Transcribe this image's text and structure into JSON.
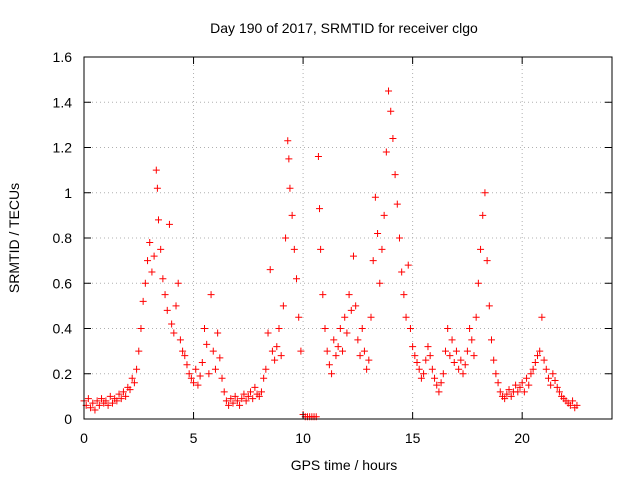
{
  "chart_data": {
    "type": "scatter",
    "title": "Day 190 of 2017, SRMTID for receiver clgo",
    "xlabel": "GPS time / hours",
    "ylabel": "SRMTID / TECUs",
    "xlim": [
      0,
      24.1
    ],
    "ylim": [
      0,
      1.6
    ],
    "xticks": [
      0,
      5,
      10,
      15,
      20
    ],
    "xtick_labels": [
      "0",
      "5",
      "10",
      "15",
      "20"
    ],
    "yticks": [
      0,
      0.2,
      0.4,
      0.6,
      0.8,
      1.0,
      1.2,
      1.4,
      1.6
    ],
    "ytick_labels": [
      "0",
      "0.2",
      "0.4",
      "0.6",
      "0.8",
      "1",
      "1.2",
      "1.4",
      "1.6"
    ],
    "grid": true,
    "marker": "+",
    "series": [
      {
        "name": "SRMTID",
        "color": "#ff0000",
        "points": [
          [
            0.0,
            0.08
          ],
          [
            0.1,
            0.06
          ],
          [
            0.2,
            0.09
          ],
          [
            0.3,
            0.05
          ],
          [
            0.4,
            0.07
          ],
          [
            0.5,
            0.04
          ],
          [
            0.6,
            0.08
          ],
          [
            0.7,
            0.06
          ],
          [
            0.8,
            0.09
          ],
          [
            0.9,
            0.07
          ],
          [
            1.0,
            0.08
          ],
          [
            1.1,
            0.06
          ],
          [
            1.2,
            0.1
          ],
          [
            1.3,
            0.07
          ],
          [
            1.4,
            0.09
          ],
          [
            1.5,
            0.08
          ],
          [
            1.6,
            0.11
          ],
          [
            1.7,
            0.09
          ],
          [
            1.8,
            0.12
          ],
          [
            1.9,
            0.1
          ],
          [
            2.0,
            0.14
          ],
          [
            2.1,
            0.13
          ],
          [
            2.2,
            0.18
          ],
          [
            2.3,
            0.16
          ],
          [
            2.4,
            0.22
          ],
          [
            2.5,
            0.3
          ],
          [
            2.6,
            0.4
          ],
          [
            2.7,
            0.52
          ],
          [
            2.8,
            0.6
          ],
          [
            2.9,
            0.7
          ],
          [
            3.0,
            0.78
          ],
          [
            3.1,
            0.65
          ],
          [
            3.2,
            0.72
          ],
          [
            3.3,
            1.1
          ],
          [
            3.35,
            1.02
          ],
          [
            3.4,
            0.88
          ],
          [
            3.5,
            0.75
          ],
          [
            3.6,
            0.62
          ],
          [
            3.7,
            0.55
          ],
          [
            3.8,
            0.48
          ],
          [
            3.9,
            0.86
          ],
          [
            4.0,
            0.42
          ],
          [
            4.1,
            0.38
          ],
          [
            4.2,
            0.5
          ],
          [
            4.3,
            0.6
          ],
          [
            4.4,
            0.35
          ],
          [
            4.5,
            0.3
          ],
          [
            4.6,
            0.28
          ],
          [
            4.7,
            0.24
          ],
          [
            4.8,
            0.2
          ],
          [
            4.9,
            0.18
          ],
          [
            5.0,
            0.16
          ],
          [
            5.1,
            0.22
          ],
          [
            5.2,
            0.15
          ],
          [
            5.3,
            0.19
          ],
          [
            5.4,
            0.25
          ],
          [
            5.5,
            0.4
          ],
          [
            5.6,
            0.33
          ],
          [
            5.7,
            0.2
          ],
          [
            5.8,
            0.55
          ],
          [
            5.9,
            0.3
          ],
          [
            6.0,
            0.22
          ],
          [
            6.1,
            0.38
          ],
          [
            6.2,
            0.27
          ],
          [
            6.3,
            0.18
          ],
          [
            6.4,
            0.12
          ],
          [
            6.5,
            0.08
          ],
          [
            6.6,
            0.06
          ],
          [
            6.7,
            0.09
          ],
          [
            6.8,
            0.07
          ],
          [
            6.9,
            0.1
          ],
          [
            7.0,
            0.08
          ],
          [
            7.1,
            0.06
          ],
          [
            7.2,
            0.09
          ],
          [
            7.3,
            0.11
          ],
          [
            7.4,
            0.08
          ],
          [
            7.5,
            0.1
          ],
          [
            7.6,
            0.12
          ],
          [
            7.7,
            0.09
          ],
          [
            7.8,
            0.14
          ],
          [
            7.9,
            0.11
          ],
          [
            8.0,
            0.1
          ],
          [
            8.1,
            0.12
          ],
          [
            8.2,
            0.18
          ],
          [
            8.3,
            0.22
          ],
          [
            8.4,
            0.38
          ],
          [
            8.5,
            0.66
          ],
          [
            8.6,
            0.3
          ],
          [
            8.7,
            0.26
          ],
          [
            8.8,
            0.32
          ],
          [
            8.9,
            0.4
          ],
          [
            9.0,
            0.28
          ],
          [
            9.1,
            0.5
          ],
          [
            9.2,
            0.8
          ],
          [
            9.3,
            1.23
          ],
          [
            9.35,
            1.15
          ],
          [
            9.4,
            1.02
          ],
          [
            9.5,
            0.9
          ],
          [
            9.6,
            0.75
          ],
          [
            9.7,
            0.62
          ],
          [
            9.8,
            0.45
          ],
          [
            9.9,
            0.3
          ],
          [
            10.0,
            0.02
          ],
          [
            10.1,
            0.01
          ],
          [
            10.2,
            0.01
          ],
          [
            10.3,
            0.01
          ],
          [
            10.4,
            0.01
          ],
          [
            10.5,
            0.01
          ],
          [
            10.6,
            0.01
          ],
          [
            10.7,
            1.16
          ],
          [
            10.75,
            0.93
          ],
          [
            10.8,
            0.75
          ],
          [
            10.9,
            0.55
          ],
          [
            11.0,
            0.4
          ],
          [
            11.1,
            0.3
          ],
          [
            11.2,
            0.24
          ],
          [
            11.3,
            0.2
          ],
          [
            11.4,
            0.35
          ],
          [
            11.5,
            0.28
          ],
          [
            11.6,
            0.32
          ],
          [
            11.7,
            0.4
          ],
          [
            11.8,
            0.3
          ],
          [
            11.9,
            0.45
          ],
          [
            12.0,
            0.38
          ],
          [
            12.1,
            0.55
          ],
          [
            12.2,
            0.48
          ],
          [
            12.3,
            0.72
          ],
          [
            12.4,
            0.5
          ],
          [
            12.5,
            0.35
          ],
          [
            12.6,
            0.28
          ],
          [
            12.7,
            0.4
          ],
          [
            12.8,
            0.3
          ],
          [
            12.9,
            0.22
          ],
          [
            13.0,
            0.26
          ],
          [
            13.1,
            0.45
          ],
          [
            13.2,
            0.7
          ],
          [
            13.3,
            0.98
          ],
          [
            13.4,
            0.82
          ],
          [
            13.5,
            0.6
          ],
          [
            13.6,
            0.75
          ],
          [
            13.7,
            0.9
          ],
          [
            13.8,
            1.18
          ],
          [
            13.9,
            1.45
          ],
          [
            14.0,
            1.36
          ],
          [
            14.1,
            1.24
          ],
          [
            14.2,
            1.08
          ],
          [
            14.3,
            0.95
          ],
          [
            14.4,
            0.8
          ],
          [
            14.5,
            0.65
          ],
          [
            14.6,
            0.55
          ],
          [
            14.7,
            0.45
          ],
          [
            14.8,
            0.68
          ],
          [
            14.9,
            0.4
          ],
          [
            15.0,
            0.32
          ],
          [
            15.1,
            0.28
          ],
          [
            15.2,
            0.25
          ],
          [
            15.3,
            0.22
          ],
          [
            15.4,
            0.18
          ],
          [
            15.5,
            0.2
          ],
          [
            15.6,
            0.26
          ],
          [
            15.7,
            0.32
          ],
          [
            15.8,
            0.28
          ],
          [
            15.9,
            0.22
          ],
          [
            16.0,
            0.18
          ],
          [
            16.1,
            0.15
          ],
          [
            16.2,
            0.12
          ],
          [
            16.3,
            0.16
          ],
          [
            16.4,
            0.2
          ],
          [
            16.5,
            0.3
          ],
          [
            16.6,
            0.4
          ],
          [
            16.7,
            0.28
          ],
          [
            16.8,
            0.35
          ],
          [
            16.9,
            0.25
          ],
          [
            17.0,
            0.3
          ],
          [
            17.1,
            0.22
          ],
          [
            17.2,
            0.26
          ],
          [
            17.3,
            0.2
          ],
          [
            17.4,
            0.24
          ],
          [
            17.5,
            0.3
          ],
          [
            17.6,
            0.4
          ],
          [
            17.7,
            0.35
          ],
          [
            17.8,
            0.28
          ],
          [
            17.9,
            0.45
          ],
          [
            18.0,
            0.6
          ],
          [
            18.1,
            0.75
          ],
          [
            18.2,
            0.9
          ],
          [
            18.3,
            1.0
          ],
          [
            18.4,
            0.7
          ],
          [
            18.5,
            0.5
          ],
          [
            18.6,
            0.35
          ],
          [
            18.7,
            0.26
          ],
          [
            18.8,
            0.2
          ],
          [
            18.9,
            0.16
          ],
          [
            19.0,
            0.12
          ],
          [
            19.1,
            0.1
          ],
          [
            19.2,
            0.09
          ],
          [
            19.3,
            0.11
          ],
          [
            19.4,
            0.13
          ],
          [
            19.5,
            0.1
          ],
          [
            19.6,
            0.12
          ],
          [
            19.7,
            0.15
          ],
          [
            19.8,
            0.12
          ],
          [
            19.9,
            0.14
          ],
          [
            20.0,
            0.16
          ],
          [
            20.1,
            0.12
          ],
          [
            20.2,
            0.18
          ],
          [
            20.3,
            0.15
          ],
          [
            20.4,
            0.2
          ],
          [
            20.5,
            0.22
          ],
          [
            20.6,
            0.25
          ],
          [
            20.7,
            0.28
          ],
          [
            20.8,
            0.3
          ],
          [
            20.9,
            0.45
          ],
          [
            21.0,
            0.26
          ],
          [
            21.1,
            0.22
          ],
          [
            21.2,
            0.18
          ],
          [
            21.3,
            0.15
          ],
          [
            21.4,
            0.2
          ],
          [
            21.5,
            0.17
          ],
          [
            21.6,
            0.14
          ],
          [
            21.7,
            0.12
          ],
          [
            21.8,
            0.1
          ],
          [
            21.9,
            0.09
          ],
          [
            22.0,
            0.08
          ],
          [
            22.1,
            0.07
          ],
          [
            22.2,
            0.06
          ],
          [
            22.3,
            0.08
          ],
          [
            22.4,
            0.05
          ],
          [
            22.5,
            0.06
          ]
        ]
      }
    ]
  }
}
